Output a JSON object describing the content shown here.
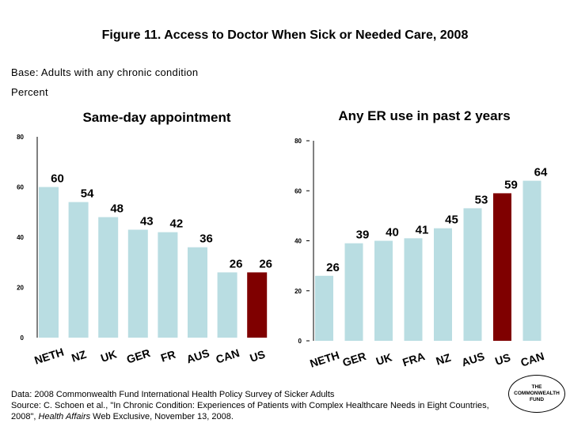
{
  "title": "Figure 11. Access to Doctor When Sick or Needed Care, 2008",
  "base": "Base: Adults with any chronic condition",
  "unit": "Percent",
  "footnote": {
    "line1": "Data: 2008 Commonwealth Fund International Health Policy Survey of Sicker Adults",
    "line2_prefix": "Source: C. Schoen et al., \"In Chronic Condition: Experiences of Patients with Complex Healthcare Needs in Eight Countries, 2008\", ",
    "journal": "Health Affairs",
    "line2_suffix": " Web Exclusive, November 13, 2008."
  },
  "logo": "THE COMMONWEALTH FUND",
  "colors": {
    "bar": "#b9dde2",
    "highlight": "#7f0000",
    "axis": "#000000"
  },
  "chart_data": [
    {
      "type": "bar",
      "title": "Same-day appointment",
      "categories": [
        "NETH",
        "NZ",
        "UK",
        "GER",
        "FR",
        "AUS",
        "CAN",
        "US"
      ],
      "values": [
        60,
        54,
        48,
        43,
        42,
        36,
        26,
        26
      ],
      "highlight": "US",
      "ylim": [
        0,
        80
      ],
      "yticks": [
        0,
        20,
        40,
        60,
        80
      ],
      "grid": false
    },
    {
      "type": "bar",
      "title": "Any ER use in past 2 years",
      "categories": [
        "NETH",
        "GER",
        "UK",
        "FRA",
        "NZ",
        "AUS",
        "US",
        "CAN"
      ],
      "values": [
        26,
        39,
        40,
        41,
        45,
        53,
        59,
        64
      ],
      "highlight": "US",
      "ylim": [
        0,
        80
      ],
      "yticks": [
        0,
        20,
        40,
        60,
        80
      ],
      "grid": false
    }
  ]
}
